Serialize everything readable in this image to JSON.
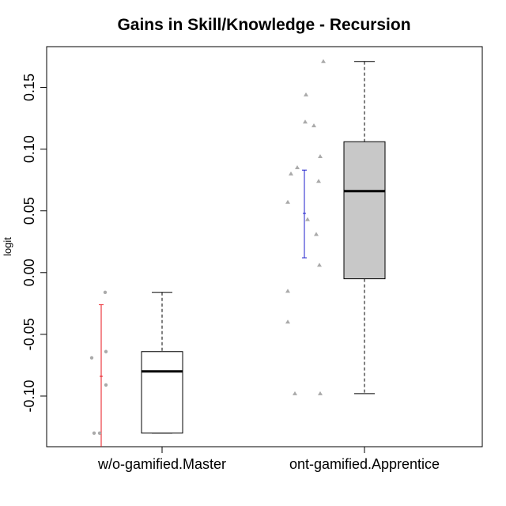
{
  "chart_data": {
    "type": "box",
    "title": "Gains in Skill/Knowledge - Recursion",
    "ylabel": "logit",
    "ylim": [
      -0.141,
      0.183
    ],
    "yticks": [
      -0.1,
      -0.05,
      0.0,
      0.05,
      0.1,
      0.15
    ],
    "ytick_labels": [
      "-0.10",
      "-0.05",
      "0.00",
      "0.05",
      "0.10",
      "0.15"
    ],
    "categories": [
      "w/o-gamified.Master",
      "ont-gamified.Apprentice"
    ],
    "boxes": [
      {
        "category": "w/o-gamified.Master",
        "min": -0.13,
        "q1": -0.13,
        "median": -0.08,
        "q3": -0.064,
        "max": -0.016,
        "fill": "#ffffff"
      },
      {
        "category": "ont-gamified.Apprentice",
        "min": -0.098,
        "q1": -0.005,
        "median": 0.066,
        "q3": 0.106,
        "max": 0.171,
        "fill": "#c8c8c8"
      }
    ],
    "mean_ci": [
      {
        "category": "w/o-gamified.Master",
        "mean": -0.084,
        "lower": -0.145,
        "upper": -0.026,
        "color": "#e8141e"
      },
      {
        "category": "ont-gamified.Apprentice",
        "mean": 0.048,
        "lower": 0.012,
        "upper": 0.083,
        "color": "#1e1ecc"
      }
    ],
    "points": [
      {
        "category": "w/o-gamified.Master",
        "marker": "circle",
        "values": [
          -0.016,
          -0.064,
          -0.069,
          -0.091,
          -0.13,
          -0.13
        ]
      },
      {
        "category": "ont-gamified.Apprentice",
        "marker": "triangle",
        "values": [
          0.171,
          0.144,
          0.122,
          0.119,
          0.094,
          0.085,
          0.08,
          0.074,
          0.057,
          0.043,
          0.031,
          0.006,
          -0.015,
          -0.04,
          -0.098,
          -0.098
        ]
      }
    ],
    "colors": {
      "box_border": "#000000",
      "point": "#aaaaaa"
    }
  }
}
